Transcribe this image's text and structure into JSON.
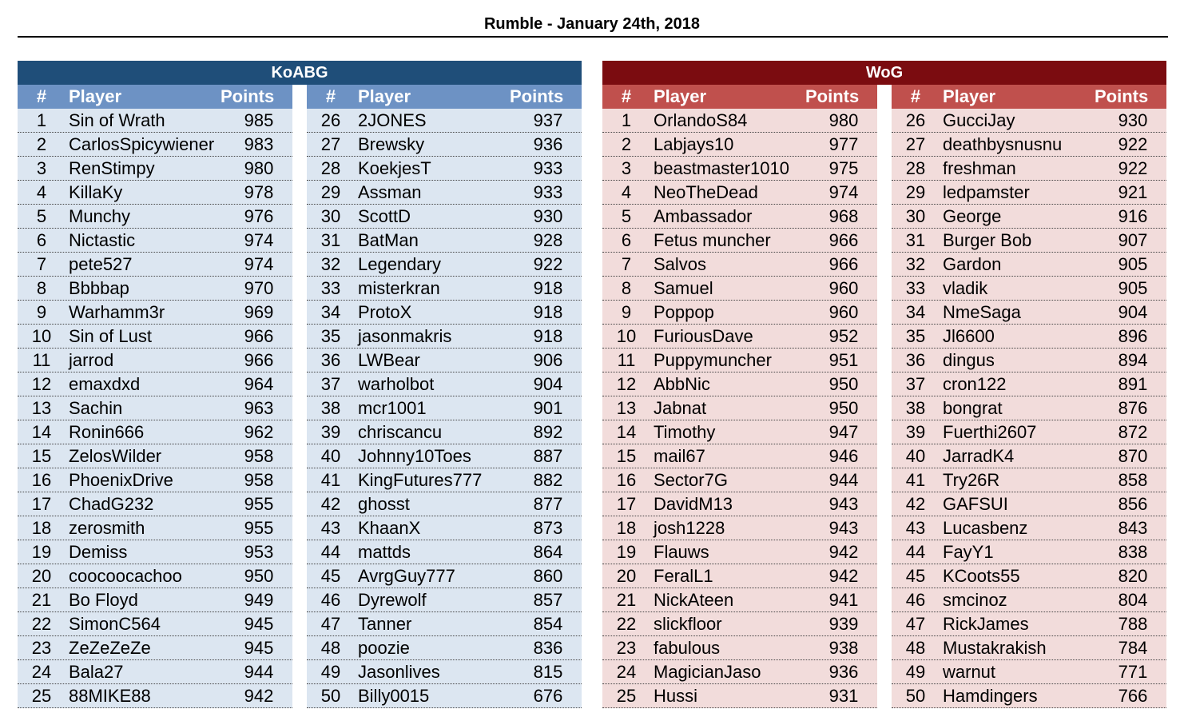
{
  "title": "Rumble - January 24th, 2018",
  "columns": {
    "num": "#",
    "player": "Player",
    "points": "Points"
  },
  "teams": [
    {
      "name": "KoABG",
      "color": "#1f4e79",
      "players": [
        {
          "rank": "1",
          "name": "Sin of Wrath",
          "points": "985"
        },
        {
          "rank": "2",
          "name": "CarlosSpicywiener",
          "points": "983"
        },
        {
          "rank": "3",
          "name": "RenStimpy",
          "points": "980"
        },
        {
          "rank": "4",
          "name": "KillaKy",
          "points": "978"
        },
        {
          "rank": "5",
          "name": "Munchy",
          "points": "976"
        },
        {
          "rank": "6",
          "name": "Nictastic",
          "points": "974"
        },
        {
          "rank": "7",
          "name": "pete527",
          "points": "974"
        },
        {
          "rank": "8",
          "name": "Bbbbap",
          "points": "970"
        },
        {
          "rank": "9",
          "name": "Warhamm3r",
          "points": "969"
        },
        {
          "rank": "10",
          "name": "Sin of Lust",
          "points": "966"
        },
        {
          "rank": "11",
          "name": "jarrod",
          "points": "966"
        },
        {
          "rank": "12",
          "name": "emaxdxd",
          "points": "964"
        },
        {
          "rank": "13",
          "name": "Sachin",
          "points": "963"
        },
        {
          "rank": "14",
          "name": "Ronin666",
          "points": "962"
        },
        {
          "rank": "15",
          "name": "ZelosWilder",
          "points": "958"
        },
        {
          "rank": "16",
          "name": "PhoenixDrive",
          "points": "958"
        },
        {
          "rank": "17",
          "name": "ChadG232",
          "points": "955"
        },
        {
          "rank": "18",
          "name": "zerosmith",
          "points": "955"
        },
        {
          "rank": "19",
          "name": "Demiss",
          "points": "953"
        },
        {
          "rank": "20",
          "name": "coocoocachoo",
          "points": "950"
        },
        {
          "rank": "21",
          "name": "Bo Floyd",
          "points": "949"
        },
        {
          "rank": "22",
          "name": "SimonC564",
          "points": "945"
        },
        {
          "rank": "23",
          "name": "ZeZeZeZe",
          "points": "945"
        },
        {
          "rank": "24",
          "name": "Bala27",
          "points": "944"
        },
        {
          "rank": "25",
          "name": "88MIKE88",
          "points": "942"
        },
        {
          "rank": "26",
          "name": "2JONES",
          "points": "937"
        },
        {
          "rank": "27",
          "name": "Brewsky",
          "points": "936"
        },
        {
          "rank": "28",
          "name": "KoekjesT",
          "points": "933"
        },
        {
          "rank": "29",
          "name": "Assman",
          "points": "933"
        },
        {
          "rank": "30",
          "name": "ScottD",
          "points": "930"
        },
        {
          "rank": "31",
          "name": "BatMan",
          "points": "928"
        },
        {
          "rank": "32",
          "name": "Legendary",
          "points": "922"
        },
        {
          "rank": "33",
          "name": "misterkran",
          "points": "918"
        },
        {
          "rank": "34",
          "name": "ProtoX",
          "points": "918"
        },
        {
          "rank": "35",
          "name": "jasonmakris",
          "points": "918"
        },
        {
          "rank": "36",
          "name": "LWBear",
          "points": "906"
        },
        {
          "rank": "37",
          "name": "warholbot",
          "points": "904"
        },
        {
          "rank": "38",
          "name": "mcr1001",
          "points": "901"
        },
        {
          "rank": "39",
          "name": "chriscancu",
          "points": "892"
        },
        {
          "rank": "40",
          "name": "Johnny10Toes",
          "points": "887"
        },
        {
          "rank": "41",
          "name": "KingFutures777",
          "points": "882"
        },
        {
          "rank": "42",
          "name": "ghosst",
          "points": "877"
        },
        {
          "rank": "43",
          "name": "KhaanX",
          "points": "873"
        },
        {
          "rank": "44",
          "name": "mattds",
          "points": "864"
        },
        {
          "rank": "45",
          "name": "AvrgGuy777",
          "points": "860"
        },
        {
          "rank": "46",
          "name": "Dyrewolf",
          "points": "857"
        },
        {
          "rank": "47",
          "name": "Tanner",
          "points": "854"
        },
        {
          "rank": "48",
          "name": "poozie",
          "points": "836"
        },
        {
          "rank": "49",
          "name": "Jasonlives",
          "points": "815"
        },
        {
          "rank": "50",
          "name": "Billy0015",
          "points": "676"
        }
      ]
    },
    {
      "name": "WoG",
      "color": "#7b0c10",
      "players": [
        {
          "rank": "1",
          "name": "OrlandoS84",
          "points": "980"
        },
        {
          "rank": "2",
          "name": "Labjays10",
          "points": "977"
        },
        {
          "rank": "3",
          "name": "beastmaster1010",
          "points": "975"
        },
        {
          "rank": "4",
          "name": "NeoTheDead",
          "points": "974"
        },
        {
          "rank": "5",
          "name": "Ambassador",
          "points": "968"
        },
        {
          "rank": "6",
          "name": "Fetus muncher",
          "points": "966"
        },
        {
          "rank": "7",
          "name": "Salvos",
          "points": "966"
        },
        {
          "rank": "8",
          "name": "Samuel",
          "points": "960"
        },
        {
          "rank": "9",
          "name": "Poppop",
          "points": "960"
        },
        {
          "rank": "10",
          "name": "FuriousDave",
          "points": "952"
        },
        {
          "rank": "11",
          "name": "Puppymuncher",
          "points": "951"
        },
        {
          "rank": "12",
          "name": "AbbNic",
          "points": "950"
        },
        {
          "rank": "13",
          "name": "Jabnat",
          "points": "950"
        },
        {
          "rank": "14",
          "name": "Timothy",
          "points": "947"
        },
        {
          "rank": "15",
          "name": "mail67",
          "points": "946"
        },
        {
          "rank": "16",
          "name": "Sector7G",
          "points": "944"
        },
        {
          "rank": "17",
          "name": "DavidM13",
          "points": "943"
        },
        {
          "rank": "18",
          "name": "josh1228",
          "points": "943"
        },
        {
          "rank": "19",
          "name": "Flauws",
          "points": "942"
        },
        {
          "rank": "20",
          "name": "FeralL1",
          "points": "942"
        },
        {
          "rank": "21",
          "name": "NickAteen",
          "points": "941"
        },
        {
          "rank": "22",
          "name": "slickfloor",
          "points": "939"
        },
        {
          "rank": "23",
          "name": "fabulous",
          "points": "938"
        },
        {
          "rank": "24",
          "name": "MagicianJaso",
          "points": "936"
        },
        {
          "rank": "25",
          "name": "Hussi",
          "points": "931"
        },
        {
          "rank": "26",
          "name": "GucciJay",
          "points": "930"
        },
        {
          "rank": "27",
          "name": "deathbysnusnu",
          "points": "922"
        },
        {
          "rank": "28",
          "name": "freshman",
          "points": "922"
        },
        {
          "rank": "29",
          "name": "ledpamster",
          "points": "921"
        },
        {
          "rank": "30",
          "name": "George",
          "points": "916"
        },
        {
          "rank": "31",
          "name": "Burger Bob",
          "points": "907"
        },
        {
          "rank": "32",
          "name": "Gardon",
          "points": "905"
        },
        {
          "rank": "33",
          "name": "vladik",
          "points": "905"
        },
        {
          "rank": "34",
          "name": "NmeSaga",
          "points": "904"
        },
        {
          "rank": "35",
          "name": "Jl6600",
          "points": "896"
        },
        {
          "rank": "36",
          "name": "dingus",
          "points": "894"
        },
        {
          "rank": "37",
          "name": "cron122",
          "points": "891"
        },
        {
          "rank": "38",
          "name": "bongrat",
          "points": "876"
        },
        {
          "rank": "39",
          "name": "Fuerthi2607",
          "points": "872"
        },
        {
          "rank": "40",
          "name": "JarradK4",
          "points": "870"
        },
        {
          "rank": "41",
          "name": "Try26R",
          "points": "858"
        },
        {
          "rank": "42",
          "name": "GAFSUI",
          "points": "856"
        },
        {
          "rank": "43",
          "name": "Lucasbenz",
          "points": "843"
        },
        {
          "rank": "44",
          "name": "FayY1",
          "points": "838"
        },
        {
          "rank": "45",
          "name": "KCoots55",
          "points": "820"
        },
        {
          "rank": "46",
          "name": "smcinoz",
          "points": "804"
        },
        {
          "rank": "47",
          "name": "RickJames",
          "points": "788"
        },
        {
          "rank": "48",
          "name": "Mustakrakish",
          "points": "784"
        },
        {
          "rank": "49",
          "name": "warnut",
          "points": "771"
        },
        {
          "rank": "50",
          "name": "Hamdingers",
          "points": "766"
        }
      ]
    }
  ]
}
